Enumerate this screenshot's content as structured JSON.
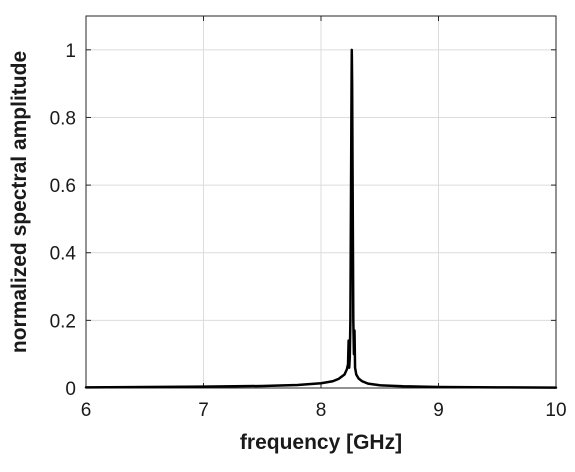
{
  "chart_data": {
    "type": "line",
    "title": "",
    "xlabel": "frequency [GHz]",
    "ylabel": "normalized spectral amplitude",
    "xlim": [
      6,
      10
    ],
    "ylim": [
      0,
      1.1
    ],
    "xticks": [
      6,
      7,
      8,
      9,
      10
    ],
    "xtick_labels": [
      "6",
      "7",
      "8",
      "9",
      "10"
    ],
    "yticks": [
      0,
      0.2,
      0.4,
      0.6,
      0.8,
      1.0
    ],
    "ytick_labels": [
      "0",
      "0.2",
      "0.4",
      "0.6",
      "0.8",
      "1"
    ],
    "grid": true,
    "legend": "none",
    "line_color": "#000000",
    "series": [
      {
        "x": [
          6.0,
          6.5,
          7.0,
          7.5,
          7.8,
          8.0,
          8.1,
          8.15,
          8.2,
          8.22,
          8.23,
          8.235,
          8.24,
          8.245,
          8.25,
          8.255,
          8.26,
          8.262,
          8.265,
          8.27,
          8.275,
          8.28,
          8.285,
          8.29,
          8.3,
          8.32,
          8.35,
          8.4,
          8.5,
          8.7,
          9.0,
          9.5,
          10.0
        ],
        "y": [
          0.002,
          0.003,
          0.004,
          0.006,
          0.009,
          0.014,
          0.02,
          0.027,
          0.04,
          0.055,
          0.07,
          0.14,
          0.06,
          0.09,
          0.2,
          0.55,
          0.9,
          1.0,
          0.9,
          0.55,
          0.2,
          0.1,
          0.17,
          0.06,
          0.04,
          0.028,
          0.02,
          0.013,
          0.008,
          0.005,
          0.003,
          0.002,
          0.001
        ]
      }
    ]
  }
}
